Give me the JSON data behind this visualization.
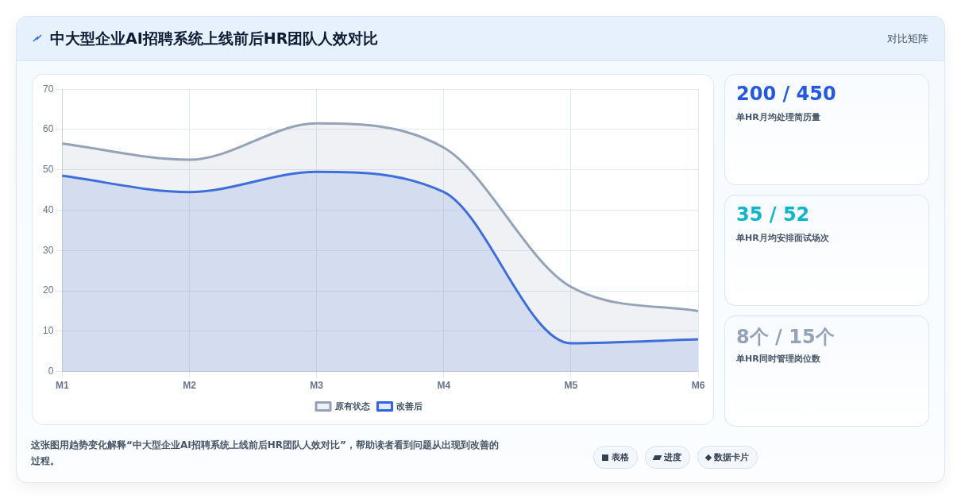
{
  "chart_data": [
    {
      "type": "area",
      "title": "中大型企业AI招聘系统上线前后HR团队人效对比",
      "categories": [
        "M1",
        "M2",
        "M3",
        "M4",
        "M5",
        "M6"
      ],
      "series": [
        {
          "name": "原有状态",
          "color": "#94a3b8",
          "values": [
            56.5,
            52.5,
            61.5,
            55.5,
            21,
            15
          ]
        },
        {
          "name": "改善后",
          "color": "#2f66e0",
          "values": [
            48.5,
            44.5,
            49.5,
            44.5,
            7,
            8
          ]
        }
      ],
      "ylim": [
        0,
        70
      ],
      "yticks": [
        0,
        10,
        20,
        30,
        40,
        50,
        60,
        70
      ],
      "grid": true,
      "legend": "bottom",
      "marker": "none",
      "annotations": [
        "对比矩阵",
        "这张图用趋势变化解释“中大型企业AI招聘系统上线前后HR团队人效对比”，帮助读者看到问题从出现到改善的过程。",
        "表格",
        "进度",
        "数据卡片"
      ]
    },
    {
      "type": "other",
      "annotations": [
        "200 / 450",
        "单HR月均处理简历量",
        "35 / 52",
        "单HR月均安排面试场次",
        "8个 / 15个",
        "单HR同时管理岗位数"
      ]
    }
  ]
}
